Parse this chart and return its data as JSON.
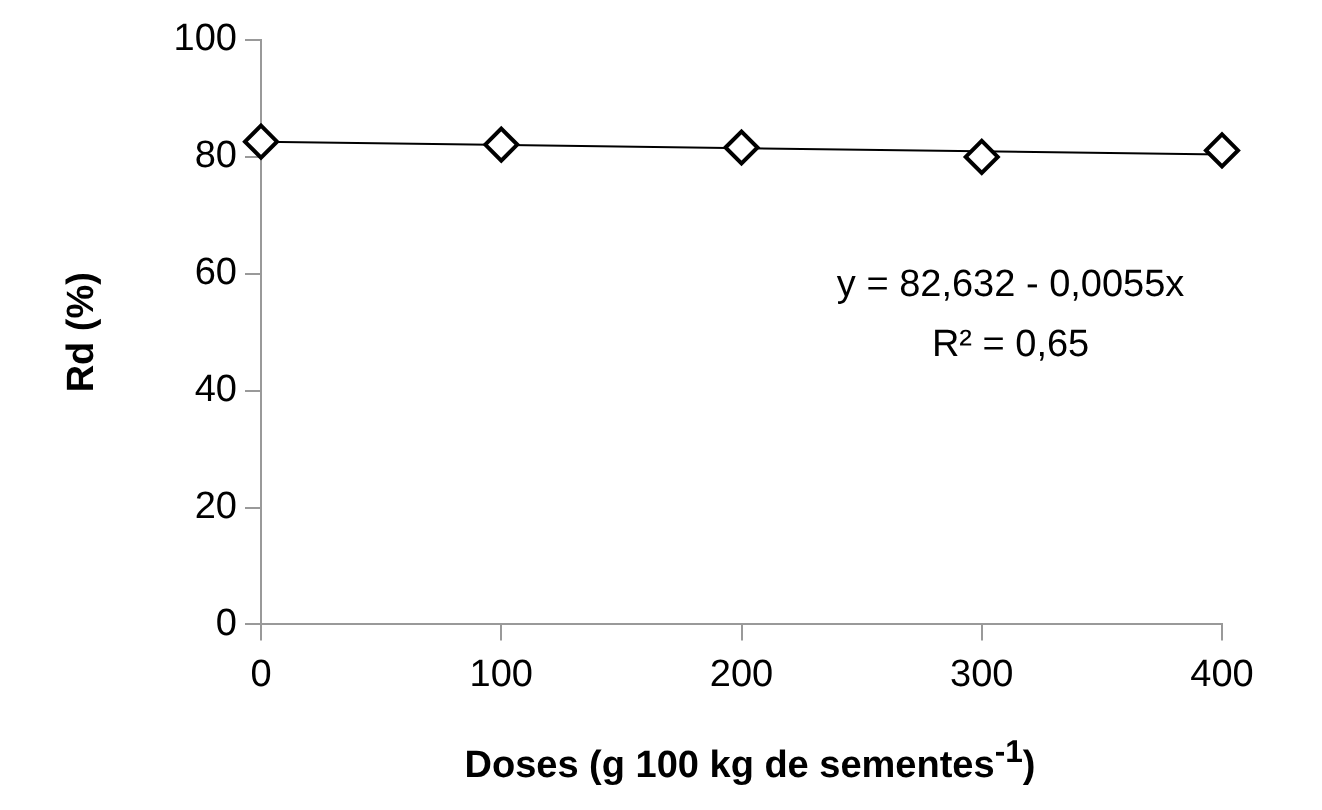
{
  "chart_data": {
    "type": "scatter",
    "xlabel": "Doses (g 100 kg de sementes$^{-1}$)",
    "ylabel": "Rd (%)",
    "x": [
      0,
      100,
      200,
      300,
      400
    ],
    "series": [
      {
        "color": "#000000",
        "marker": "diamond",
        "values": [
          82.6,
          82.1,
          81.6,
          80.0,
          81.1
        ]
      },
      {
        "type": "line",
        "color": "#000000",
        "x": [
          0,
          400
        ],
        "values": [
          82.6,
          80.4
        ],
        "marker": "none"
      }
    ],
    "xlim": [
      0,
      400
    ],
    "xticks": [
      0,
      100,
      200,
      300,
      400
    ],
    "ylim": [
      0,
      100
    ],
    "yticks": [
      0,
      20,
      40,
      60,
      80,
      100
    ],
    "grid": false,
    "legend": false,
    "annotations": [
      "y = 82,632 - 0,0055x",
      "R² = 0,65"
    ]
  }
}
